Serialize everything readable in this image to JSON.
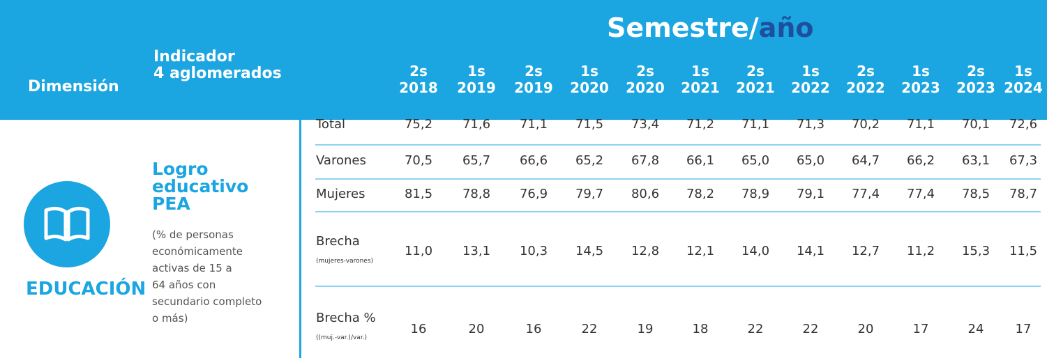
{
  "header": {
    "group_title_a": "Semestre/",
    "group_title_b": "año",
    "dimension_label": "Dimensión",
    "indicator_label": [
      "Indicador",
      "4 aglomerados"
    ],
    "columns": [
      {
        "sem": "2s",
        "year": "2018"
      },
      {
        "sem": "1s",
        "year": "2019"
      },
      {
        "sem": "2s",
        "year": "2019"
      },
      {
        "sem": "1s",
        "year": "2020"
      },
      {
        "sem": "2s",
        "year": "2020"
      },
      {
        "sem": "1s",
        "year": "2021"
      },
      {
        "sem": "2s",
        "year": "2021"
      },
      {
        "sem": "1s",
        "year": "2022"
      },
      {
        "sem": "2s",
        "year": "2022"
      },
      {
        "sem": "1s",
        "year": "2023"
      },
      {
        "sem": "2s",
        "year": "2023"
      },
      {
        "sem": "1s",
        "year": "2024"
      }
    ]
  },
  "dimension": {
    "name": "EDUCACIÓN"
  },
  "indicator": {
    "title": [
      "Logro",
      "educativo",
      "PEA"
    ],
    "description": [
      "(% de personas",
      "económicamente",
      "activas de 15 a",
      "64 años con",
      "secundario completo",
      "o más)"
    ]
  },
  "rows": [
    {
      "label": "Total",
      "values": [
        "75,2",
        "71,6",
        "71,1",
        "71,5",
        "73,4",
        "71,2",
        "71,1",
        "71,3",
        "70,2",
        "71,1",
        "70,1",
        "72,6"
      ]
    },
    {
      "label": "Varones",
      "values": [
        "70,5",
        "65,7",
        "66,6",
        "65,2",
        "67,8",
        "66,1",
        "65,0",
        "65,0",
        "64,7",
        "66,2",
        "63,1",
        "67,3"
      ]
    },
    {
      "label": "Mujeres",
      "values": [
        "81,5",
        "78,8",
        "76,9",
        "79,7",
        "80,6",
        "78,2",
        "78,9",
        "79,1",
        "77,4",
        "77,4",
        "78,5",
        "78,7"
      ]
    },
    {
      "label": "Brecha",
      "sublabel": "(mujeres-varones)",
      "values": [
        "11,0",
        "13,1",
        "10,3",
        "14,5",
        "12,8",
        "12,1",
        "14,0",
        "14,1",
        "12,7",
        "11,2",
        "15,3",
        "11,5"
      ]
    },
    {
      "label": "Brecha %",
      "sublabel": "((muj.-var.)/var.)",
      "values": [
        "16",
        "20",
        "16",
        "22",
        "19",
        "18",
        "22",
        "22",
        "20",
        "17",
        "24",
        "17"
      ]
    }
  ]
}
